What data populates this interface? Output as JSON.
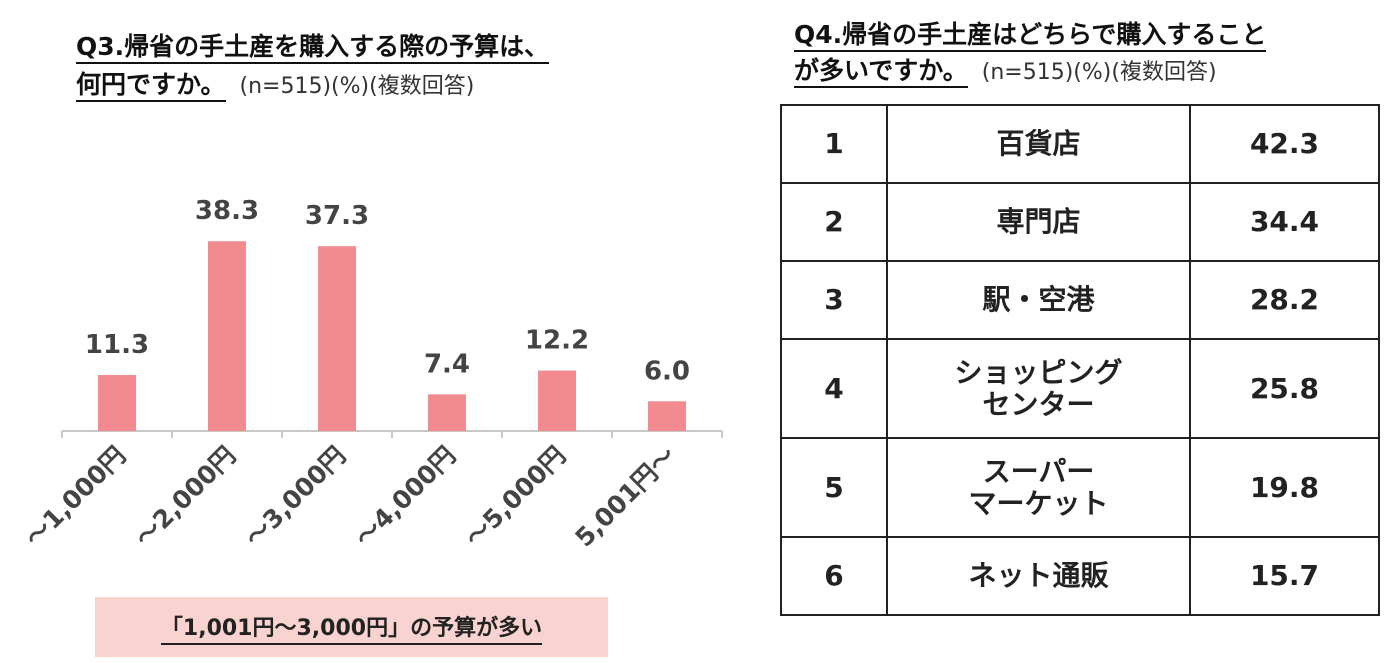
{
  "q3": {
    "title_line1": "Q3.帰省の手土産を購入する際の予算は、",
    "title_line2": "何円ですか。",
    "note": "(n=515)(%)(複数回答)",
    "callout": "「1,001円～3,000円」の予算が多い"
  },
  "chart_data": {
    "type": "bar",
    "categories": [
      "～1,000円",
      "～2,000円",
      "～3,000円",
      "～4,000円",
      "～5,000円",
      "5,001円～"
    ],
    "values": [
      11.3,
      38.3,
      37.3,
      7.4,
      12.2,
      6.0
    ],
    "value_labels": [
      "11.3",
      "38.3",
      "37.3",
      "7.4",
      "12.2",
      "6.0"
    ],
    "ylim": [
      0,
      45
    ],
    "grid": false,
    "bar_color": "#f28b90",
    "axis_color": "#c8c8c8",
    "label_color": "#444444"
  },
  "q4": {
    "title_line1": "Q4.帰省の手土産はどちらで購入すること",
    "title_line2": "が多いですか。",
    "note": "(n=515)(%)(複数回答)",
    "rows": [
      {
        "rank": "1",
        "label_lines": [
          "百貨店"
        ],
        "value": "42.3"
      },
      {
        "rank": "2",
        "label_lines": [
          "専門店"
        ],
        "value": "34.4"
      },
      {
        "rank": "3",
        "label_lines": [
          "駅・空港"
        ],
        "value": "28.2"
      },
      {
        "rank": "4",
        "label_lines": [
          "ショッピング",
          "センター"
        ],
        "value": "25.8"
      },
      {
        "rank": "5",
        "label_lines": [
          "スーパー",
          "マーケット"
        ],
        "value": "19.8"
      },
      {
        "rank": "6",
        "label_lines": [
          "ネット通販"
        ],
        "value": "15.7"
      }
    ]
  }
}
